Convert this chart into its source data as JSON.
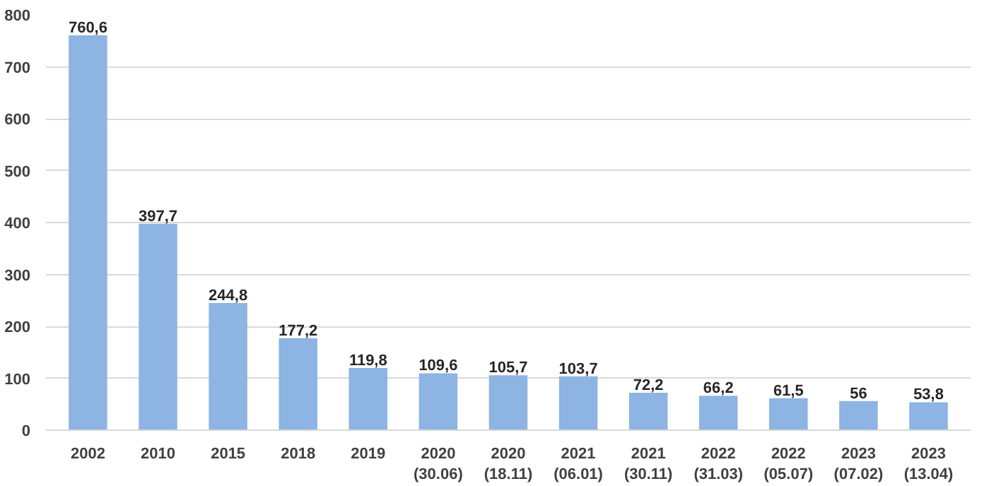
{
  "chart_data": {
    "type": "bar",
    "categories": [
      "2002",
      "2010",
      "2015",
      "2018",
      "2019",
      "2020\n(30.06)",
      "2020\n(18.11)",
      "2021\n(06.01)",
      "2021\n(30.11)",
      "2022\n(31.03)",
      "2022\n(05.07)",
      "2023\n(07.02)",
      "2023\n(13.04)"
    ],
    "values": [
      760.6,
      397.7,
      244.8,
      177.2,
      119.8,
      109.6,
      105.7,
      103.7,
      72.2,
      66.2,
      61.5,
      56,
      53.8
    ],
    "value_labels": [
      "760,6",
      "397,7",
      "244,8",
      "177,2",
      "119,8",
      "109,6",
      "105,7",
      "103,7",
      "72,2",
      "66,2",
      "61,5",
      "56",
      "53,8"
    ],
    "color": "#8db4e2",
    "ylim": [
      0,
      800
    ],
    "yticks": [
      0,
      100,
      200,
      300,
      400,
      500,
      600,
      700,
      800
    ],
    "grid": "y"
  }
}
